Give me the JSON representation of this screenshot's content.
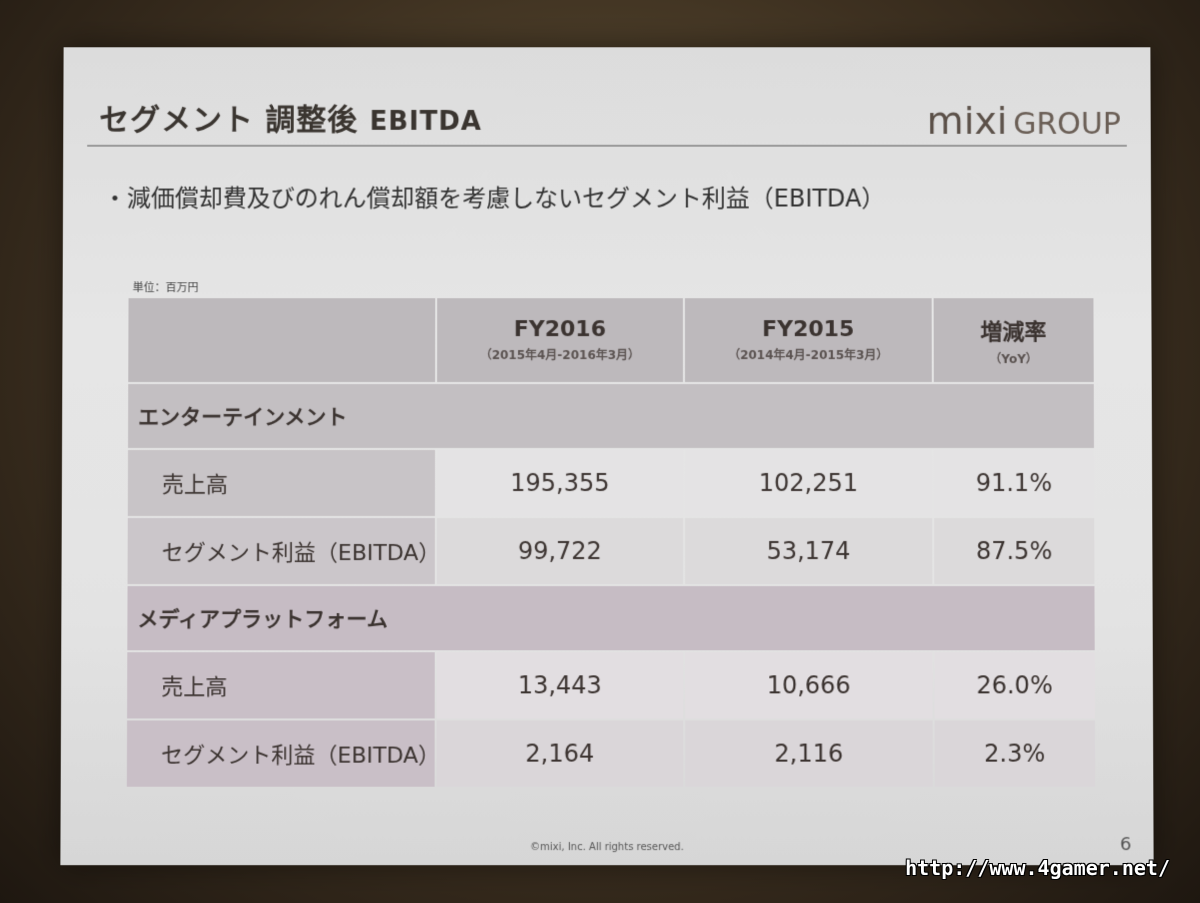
{
  "slide": {
    "title_jp": "セグメント 調整後",
    "title_en": "EBITDA",
    "logo_mixi": "mixi",
    "logo_group": "GROUP",
    "bullet": "・減価償却費及びのれん償却額を考慮しないセグメント利益（EBITDA）",
    "unit": "単位：百万円",
    "copyright": "©mixi, Inc. All rights reserved.",
    "page_number": "6"
  },
  "table": {
    "columns": [
      {
        "label": "FY2016",
        "sub": "（2015年4月-2016年3月）"
      },
      {
        "label": "FY2015",
        "sub": "（2014年4月-2015年3月）"
      },
      {
        "label": "増減率",
        "sub": "（YoY）"
      }
    ],
    "segments": [
      {
        "name": "エンターテインメント",
        "rows": [
          {
            "label": "売上高",
            "fy2016": "195,355",
            "fy2015": "102,251",
            "yoy": "91.1%"
          },
          {
            "label": "セグメント利益（EBITDA）",
            "fy2016": "99,722",
            "fy2015": "53,174",
            "yoy": "87.5%"
          }
        ]
      },
      {
        "name": "メディアプラットフォーム",
        "rows": [
          {
            "label": "売上高",
            "fy2016": "13,443",
            "fy2015": "10,666",
            "yoy": "26.0%"
          },
          {
            "label": "セグメント利益（EBITDA）",
            "fy2016": "2,164",
            "fy2015": "2,116",
            "yoy": "2.3%"
          }
        ]
      }
    ]
  },
  "watermark": "http://www.4gamer.net/"
}
